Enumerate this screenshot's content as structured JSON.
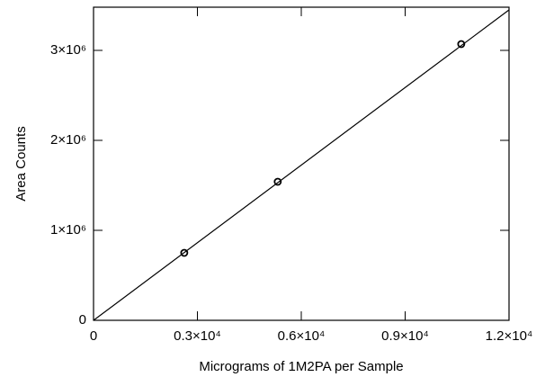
{
  "chart_data": {
    "type": "scatter",
    "xlabel": "Micrograms of 1M2PA per Sample",
    "ylabel": "Area Counts",
    "xlim": [
      0,
      12000
    ],
    "ylim": [
      0,
      3480000
    ],
    "xticks": [
      0,
      {
        "value": 3000,
        "label": "0.3×10⁴"
      },
      {
        "value": 6000,
        "label": "0.6×10⁴"
      },
      {
        "value": 9000,
        "label": "0.9×10⁴"
      },
      {
        "value": 12000,
        "label": "1.2×10⁴"
      }
    ],
    "yticks": [
      0,
      {
        "value": 1000000,
        "label": "1×10⁶"
      },
      {
        "value": 2000000,
        "label": "2×10⁶"
      },
      {
        "value": 3000000,
        "label": "3×10⁶"
      }
    ],
    "series": [
      {
        "style": "markers",
        "color": "#000000",
        "x": [
          2620,
          5320,
          10620
        ],
        "values": [
          750000,
          1540000,
          3070000
        ]
      },
      {
        "style": "line",
        "color": "#000000",
        "x": [
          0,
          12000
        ],
        "values": [
          0,
          3450000
        ]
      }
    ]
  }
}
